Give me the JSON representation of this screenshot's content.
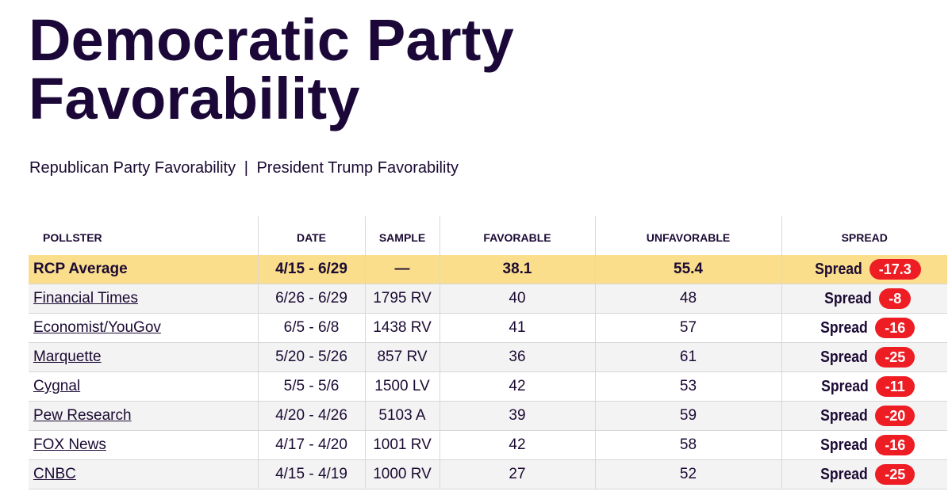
{
  "page": {
    "title_line1": "Democratic Party",
    "title_line2": "Favorability",
    "related_links": [
      "Republican Party Favorability",
      "President Trump Favorability"
    ],
    "related_separator": "|"
  },
  "table": {
    "headers": {
      "pollster": "POLLSTER",
      "date": "DATE",
      "sample": "SAMPLE",
      "favorable": "FAVORABLE",
      "unfavorable": "UNFAVORABLE",
      "spread": "SPREAD"
    },
    "spread_label": "Spread",
    "average": {
      "pollster": "RCP Average",
      "date": "4/15 - 6/29",
      "sample": "—",
      "favorable": "38.1",
      "unfavorable": "55.4",
      "spread": "-17.3"
    },
    "rows": [
      {
        "pollster": "Financial Times",
        "date": "6/26 - 6/29",
        "sample": "1795 RV",
        "favorable": "40",
        "unfavorable": "48",
        "spread": "-8"
      },
      {
        "pollster": "Economist/YouGov",
        "date": "6/5 - 6/8",
        "sample": "1438 RV",
        "favorable": "41",
        "unfavorable": "57",
        "spread": "-16"
      },
      {
        "pollster": "Marquette",
        "date": "5/20 - 5/26",
        "sample": "857 RV",
        "favorable": "36",
        "unfavorable": "61",
        "spread": "-25"
      },
      {
        "pollster": "Cygnal",
        "date": "5/5 - 5/6",
        "sample": "1500 LV",
        "favorable": "42",
        "unfavorable": "53",
        "spread": "-11"
      },
      {
        "pollster": "Pew Research",
        "date": "4/20 - 4/26",
        "sample": "5103 A",
        "favorable": "39",
        "unfavorable": "59",
        "spread": "-20"
      },
      {
        "pollster": "FOX News",
        "date": "4/17 - 4/20",
        "sample": "1001 RV",
        "favorable": "42",
        "unfavorable": "58",
        "spread": "-16"
      },
      {
        "pollster": "CNBC",
        "date": "4/15 - 4/19",
        "sample": "1000 RV",
        "favorable": "27",
        "unfavorable": "52",
        "spread": "-25"
      }
    ]
  },
  "colors": {
    "title": "#1b0838",
    "average_row": "#fbde8b",
    "spread_badge": "#ee1d24",
    "stripe": "#f3f3f3"
  }
}
